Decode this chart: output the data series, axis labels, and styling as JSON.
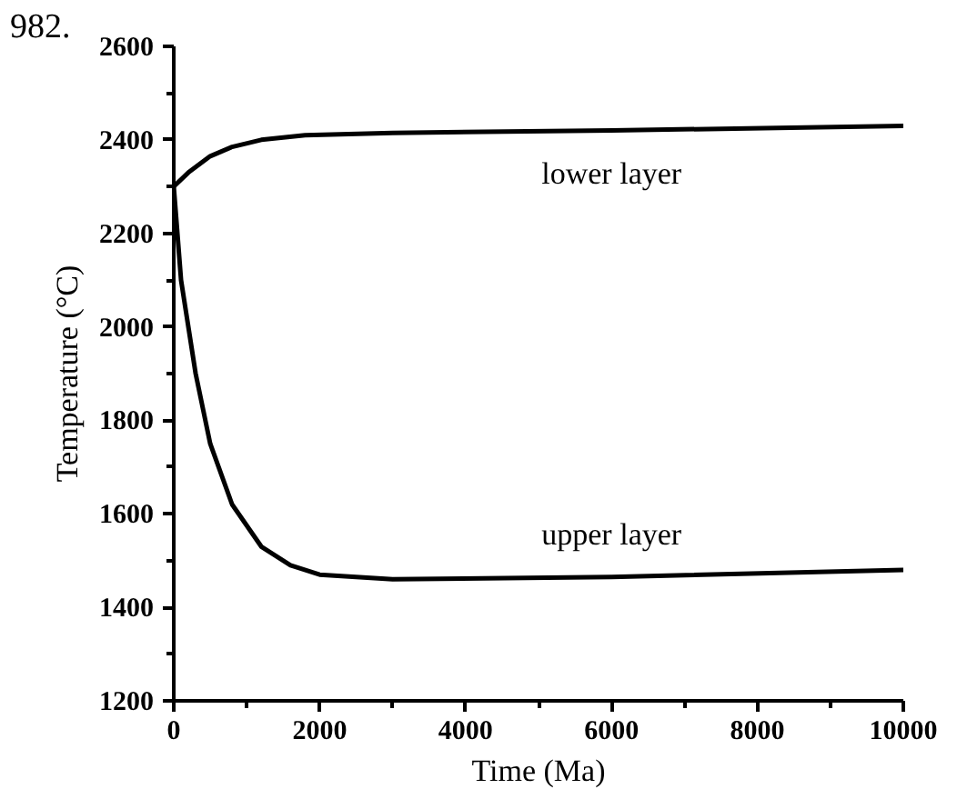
{
  "chart_data": {
    "type": "line",
    "xlabel": "Time (Ma)",
    "ylabel": "Temperature (°C)",
    "annotations": [
      "982."
    ],
    "series": [
      {
        "name": "lower layer",
        "color": "#000000",
        "x": [
          0,
          200,
          500,
          800,
          1200,
          1800,
          3000,
          6000,
          10000
        ],
        "values": [
          2300,
          2330,
          2365,
          2385,
          2400,
          2410,
          2415,
          2420,
          2430
        ]
      },
      {
        "name": "upper layer",
        "color": "#000000",
        "x": [
          0,
          100,
          300,
          500,
          800,
          1200,
          1600,
          2000,
          3000,
          6000,
          10000
        ],
        "values": [
          2300,
          2100,
          1900,
          1750,
          1620,
          1530,
          1490,
          1470,
          1460,
          1465,
          1480
        ]
      }
    ],
    "xlim": [
      0,
      10000
    ],
    "ylim": [
      1200,
      2600
    ],
    "xticks": [
      0,
      2000,
      4000,
      6000,
      8000,
      10000
    ],
    "yticks": [
      1200,
      1400,
      1600,
      1800,
      2000,
      2200,
      2400,
      2600
    ],
    "grid": false,
    "marker": "none",
    "line_style": "solid"
  }
}
